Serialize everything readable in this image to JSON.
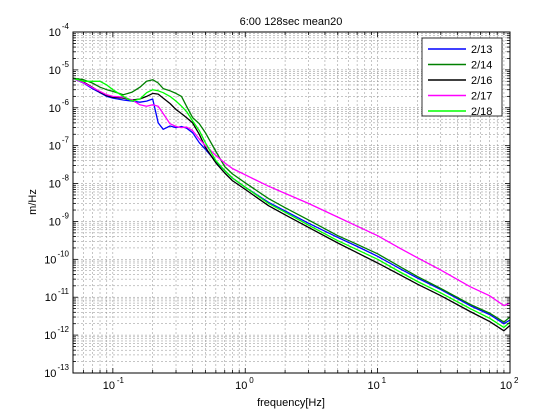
{
  "chart_data": {
    "type": "line",
    "title": "6:00 128sec mean20",
    "xlabel": "frequency[Hz]",
    "ylabel": "m/Hz",
    "x_scale": "log",
    "y_scale": "log",
    "xlim": [
      0.05,
      100
    ],
    "ylim": [
      1e-13,
      0.0001
    ],
    "grid": true,
    "legend_position": "top-right",
    "x_ticks": [
      {
        "value": 0.1,
        "base": "10",
        "exp": "-1"
      },
      {
        "value": 1,
        "base": "10",
        "exp": "0"
      },
      {
        "value": 10,
        "base": "10",
        "exp": "1"
      },
      {
        "value": 100,
        "base": "10",
        "exp": "2"
      }
    ],
    "y_ticks": [
      {
        "value": 1e-13,
        "base": "10",
        "exp": "-13"
      },
      {
        "value": 1e-12,
        "base": "10",
        "exp": "-12"
      },
      {
        "value": 1e-11,
        "base": "10",
        "exp": "-11"
      },
      {
        "value": 1e-10,
        "base": "10",
        "exp": "-10"
      },
      {
        "value": 1e-09,
        "base": "10",
        "exp": "-9"
      },
      {
        "value": 1e-08,
        "base": "10",
        "exp": "-8"
      },
      {
        "value": 1e-07,
        "base": "10",
        "exp": "-7"
      },
      {
        "value": 1e-06,
        "base": "10",
        "exp": "-6"
      },
      {
        "value": 1e-05,
        "base": "10",
        "exp": "-5"
      },
      {
        "value": 0.0001,
        "base": "10",
        "exp": "-4"
      }
    ],
    "series": [
      {
        "name": "2/13",
        "color": "#0000ff",
        "x": [
          0.05,
          0.06,
          0.07,
          0.08,
          0.09,
          0.1,
          0.12,
          0.14,
          0.16,
          0.18,
          0.2,
          0.22,
          0.24,
          0.27,
          0.3,
          0.33,
          0.36,
          0.4,
          0.45,
          0.5,
          0.6,
          0.7,
          0.8,
          1,
          1.5,
          2,
          3,
          5,
          7,
          10,
          15,
          20,
          30,
          50,
          70,
          90,
          100
        ],
        "y": [
          6e-06,
          4.5e-06,
          3.2e-06,
          2.5e-06,
          2e-06,
          1.8e-06,
          1.6e-06,
          1.5e-06,
          1.4e-06,
          1.5e-06,
          1.7e-06,
          4e-07,
          2.7e-07,
          3.3e-07,
          3e-07,
          3.2e-07,
          2.9e-07,
          2.2e-07,
          1.2e-07,
          8e-08,
          3.8e-08,
          2.2e-08,
          1.4e-08,
          8e-09,
          3.2e-09,
          1.9e-09,
          9e-10,
          3.8e-10,
          2.2e-10,
          1.2e-10,
          5.5e-11,
          3.2e-11,
          1.6e-11,
          6e-12,
          3.5e-12,
          2e-12,
          2.5e-12
        ]
      },
      {
        "name": "2/14",
        "color": "#008000",
        "x": [
          0.05,
          0.06,
          0.07,
          0.08,
          0.09,
          0.1,
          0.12,
          0.14,
          0.16,
          0.18,
          0.2,
          0.22,
          0.24,
          0.27,
          0.3,
          0.33,
          0.36,
          0.4,
          0.45,
          0.5,
          0.6,
          0.7,
          0.8,
          1,
          1.5,
          2,
          3,
          5,
          7,
          10,
          15,
          20,
          30,
          50,
          70,
          90,
          100
        ],
        "y": [
          6e-06,
          5.5e-06,
          4.5e-06,
          3.5e-06,
          3e-06,
          2.7e-06,
          2.2e-06,
          2.6e-06,
          3.5e-06,
          5e-06,
          5.5e-06,
          4.5e-06,
          3.2e-06,
          2.8e-06,
          2.4e-06,
          2e-06,
          1.1e-06,
          5.5e-07,
          3.8e-07,
          2.2e-07,
          7e-08,
          2.8e-08,
          1.8e-08,
          1.05e-08,
          4e-09,
          2.3e-09,
          1.1e-09,
          4.2e-10,
          2.5e-10,
          1.4e-10,
          6.2e-11,
          3.5e-11,
          1.7e-11,
          6.5e-12,
          3.8e-12,
          2.2e-12,
          3e-12
        ]
      },
      {
        "name": "2/16",
        "color": "#000000",
        "x": [
          0.05,
          0.06,
          0.07,
          0.08,
          0.09,
          0.1,
          0.12,
          0.14,
          0.16,
          0.18,
          0.2,
          0.22,
          0.24,
          0.27,
          0.3,
          0.33,
          0.36,
          0.4,
          0.45,
          0.5,
          0.6,
          0.7,
          0.8,
          1,
          1.5,
          2,
          3,
          5,
          7,
          10,
          15,
          20,
          30,
          50,
          70,
          90,
          100
        ],
        "y": [
          6e-06,
          4.8e-06,
          3.5e-06,
          2.6e-06,
          2.1e-06,
          1.9e-06,
          1.8e-06,
          1.6e-06,
          1.7e-06,
          2e-06,
          2.4e-06,
          2.3e-06,
          1.8e-06,
          1.3e-06,
          9e-07,
          7e-07,
          5.5e-07,
          4e-07,
          2e-07,
          9e-08,
          3.5e-08,
          1.9e-08,
          1.2e-08,
          7e-09,
          2.6e-09,
          1.5e-09,
          7e-10,
          2.7e-10,
          1.5e-10,
          8e-11,
          3.8e-11,
          2.2e-11,
          1.1e-11,
          4.2e-12,
          2.3e-12,
          1.3e-12,
          1.8e-12
        ]
      },
      {
        "name": "2/17",
        "color": "#ff00ff",
        "x": [
          0.05,
          0.06,
          0.07,
          0.08,
          0.09,
          0.1,
          0.12,
          0.14,
          0.16,
          0.18,
          0.2,
          0.22,
          0.24,
          0.27,
          0.3,
          0.33,
          0.36,
          0.4,
          0.45,
          0.5,
          0.6,
          0.7,
          0.8,
          1,
          1.5,
          2,
          3,
          5,
          7,
          10,
          15,
          20,
          30,
          50,
          70,
          90,
          100
        ],
        "y": [
          6e-06,
          4.6e-06,
          3.4e-06,
          2.7e-06,
          2.2e-06,
          2e-06,
          1.9e-06,
          1.6e-06,
          1.2e-06,
          1.1e-06,
          1.2e-06,
          1.1e-06,
          7e-07,
          3.8e-07,
          3.2e-07,
          3e-07,
          3.1e-07,
          2.5e-07,
          1.5e-07,
          1e-07,
          5.5e-08,
          3.5e-08,
          2.5e-08,
          1.7e-08,
          8.5e-09,
          5.5e-09,
          3e-09,
          1.3e-09,
          7.5e-10,
          4.2e-10,
          1.9e-10,
          1.1e-10,
          5.2e-11,
          1.9e-11,
          1.1e-11,
          6e-12,
          7e-12
        ]
      },
      {
        "name": "2/18",
        "color": "#00ff00",
        "x": [
          0.05,
          0.06,
          0.07,
          0.08,
          0.09,
          0.1,
          0.12,
          0.14,
          0.16,
          0.18,
          0.2,
          0.22,
          0.24,
          0.27,
          0.3,
          0.33,
          0.36,
          0.4,
          0.45,
          0.5,
          0.6,
          0.7,
          0.8,
          1,
          1.5,
          2,
          3,
          5,
          7,
          10,
          15,
          20,
          30,
          50,
          70,
          90,
          100
        ],
        "y": [
          6e-06,
          5e-06,
          5e-06,
          5e-06,
          4e-06,
          3e-06,
          2e-06,
          1.5e-06,
          1.7e-06,
          2.5e-06,
          3e-06,
          2.8e-06,
          2.5e-06,
          2e-06,
          1.5e-06,
          1.1e-06,
          8e-07,
          4.5e-07,
          2.5e-07,
          1.2e-07,
          4e-08,
          2.2e-08,
          1.4e-08,
          8e-09,
          3e-09,
          1.75e-09,
          8e-10,
          3.1e-10,
          1.8e-10,
          1e-10,
          4.5e-11,
          2.6e-11,
          1.3e-11,
          5e-12,
          2.8e-12,
          1.6e-12,
          2.2e-12
        ]
      }
    ]
  }
}
